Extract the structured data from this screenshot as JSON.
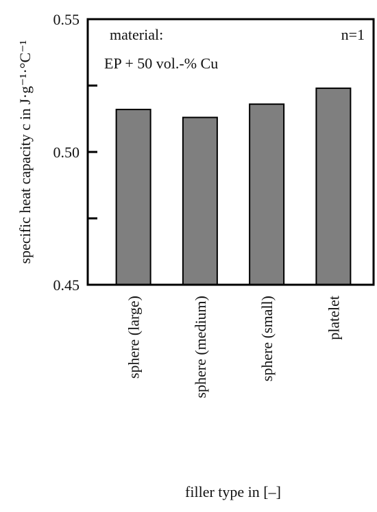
{
  "chart_data": {
    "type": "bar",
    "y_label": "specific heat capacity c in J·g⁻¹·°C⁻¹",
    "x_label": "filler type in [–]",
    "annotations": [
      "material:",
      "EP + 50 vol.-% Cu",
      "n=1"
    ],
    "categories": [
      "sphere (large)",
      "sphere (medium)",
      "sphere (small)",
      "platelet"
    ],
    "values": [
      0.516,
      0.513,
      0.518,
      0.524
    ],
    "color": "#7f7f7f",
    "ylim": [
      0.45,
      0.55
    ],
    "yticks": [
      0.45,
      {
        "value": 0.5,
        "label": "0.50"
      },
      0.55
    ],
    "minor_yticks": [
      0.475,
      0.525
    ],
    "grid": false
  }
}
